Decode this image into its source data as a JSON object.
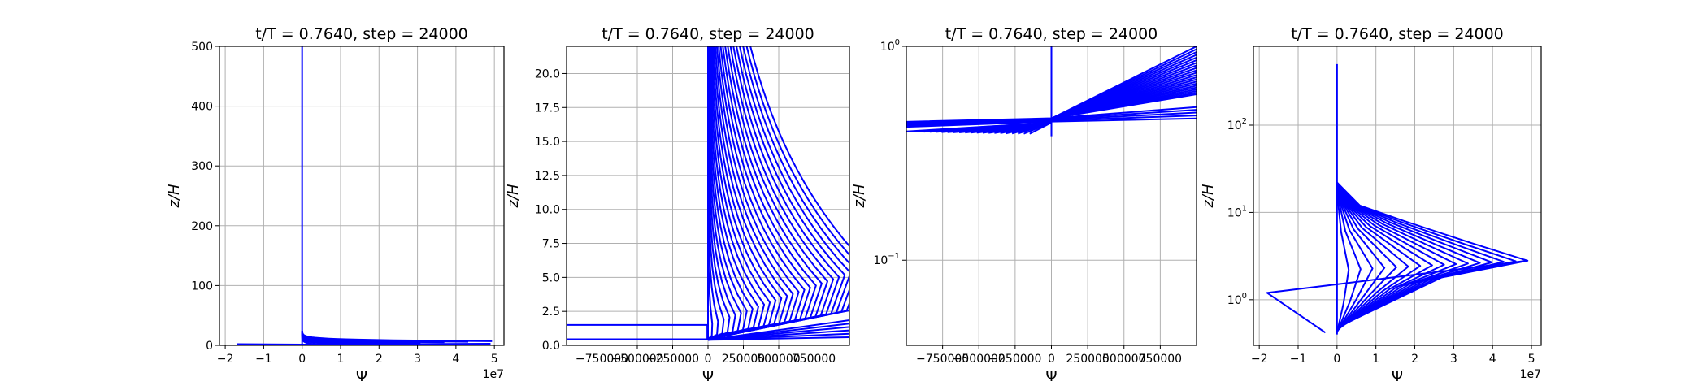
{
  "chart_data": [
    {
      "type": "line",
      "title": "t/T = 0.7640, step = 24000",
      "xlabel": "Ψ",
      "ylabel": "z/H",
      "x_multiplier_label": "1e7",
      "xscale": "linear",
      "yscale": "linear",
      "xlim": [
        -21500000.0,
        52500000.0
      ],
      "ylim": [
        0,
        500
      ],
      "xticks": [
        -20000000.0,
        -10000000.0,
        0,
        10000000.0,
        20000000.0,
        30000000.0,
        40000000.0,
        50000000.0
      ],
      "xticklabels": [
        "−2",
        "−1",
        "0",
        "1",
        "2",
        "3",
        "4",
        "5"
      ],
      "yticks": [
        0,
        100,
        200,
        300,
        400,
        500
      ],
      "yticklabels": [
        "0",
        "100",
        "200",
        "300",
        "400",
        "500"
      ],
      "grid": true
    },
    {
      "type": "line",
      "title": "t/T = 0.7640, step = 24000",
      "xlabel": "Ψ",
      "ylabel": "z/H",
      "xscale": "linear",
      "yscale": "linear",
      "xlim": [
        -1000000,
        1000000
      ],
      "ylim": [
        0,
        22
      ],
      "xticks": [
        -750000,
        -500000,
        -250000,
        0,
        250000,
        500000,
        750000
      ],
      "xticklabels": [
        "−750000",
        "−500000",
        "−250000",
        "0",
        "250000",
        "500000",
        "750000"
      ],
      "yticks": [
        0,
        2.5,
        5,
        7.5,
        10,
        12.5,
        15,
        17.5,
        20
      ],
      "yticklabels": [
        "0.0",
        "2.5",
        "5.0",
        "7.5",
        "10.0",
        "12.5",
        "15.0",
        "17.5",
        "20.0"
      ],
      "grid": true
    },
    {
      "type": "line",
      "title": "t/T = 0.7640, step = 24000",
      "xlabel": "Ψ",
      "ylabel": "z/H",
      "xscale": "linear",
      "yscale": "log",
      "xlim": [
        -1000000,
        1000000
      ],
      "ylim": [
        0.04,
        1
      ],
      "xticks": [
        -750000,
        -500000,
        -250000,
        0,
        250000,
        500000,
        750000
      ],
      "xticklabels": [
        "−750000",
        "−500000",
        "−250000",
        "0",
        "250000",
        "500000",
        "750000"
      ],
      "yticks": [
        0.1,
        1
      ],
      "yticklabels": [
        {
          "base": "10",
          "exp": "−1"
        },
        {
          "base": "10",
          "exp": "0"
        }
      ],
      "grid": true
    },
    {
      "type": "line",
      "title": "t/T = 0.7640, step = 24000",
      "xlabel": "Ψ",
      "ylabel": "z/H",
      "x_multiplier_label": "1e7",
      "xscale": "linear",
      "yscale": "log",
      "xlim": [
        -21500000.0,
        52500000.0
      ],
      "ylim": [
        0.3,
        800
      ],
      "xticks": [
        -20000000.0,
        -10000000.0,
        0,
        10000000.0,
        20000000.0,
        30000000.0,
        40000000.0,
        50000000.0
      ],
      "xticklabels": [
        "−2",
        "−1",
        "0",
        "1",
        "2",
        "3",
        "4",
        "5"
      ],
      "yticks": [
        1,
        10,
        100
      ],
      "yticklabels": [
        {
          "base": "10",
          "exp": "0"
        },
        {
          "base": "10",
          "exp": "1"
        },
        {
          "base": "10",
          "exp": "2"
        }
      ],
      "grid": true
    }
  ]
}
